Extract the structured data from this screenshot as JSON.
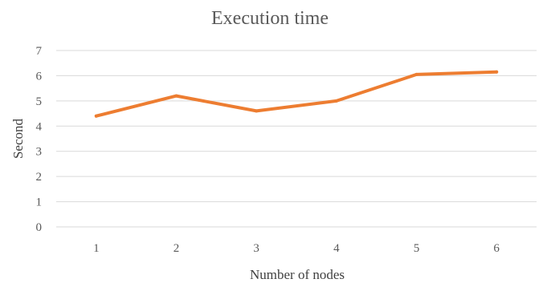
{
  "chart_data": {
    "type": "line",
    "title": "Execution time",
    "xlabel": "Number of nodes",
    "ylabel": "Second",
    "categories": [
      "1",
      "2",
      "3",
      "4",
      "5",
      "6"
    ],
    "series": [
      {
        "values": [
          4.4,
          5.2,
          4.6,
          5.0,
          6.05,
          6.15
        ],
        "color": "#ED7D31"
      }
    ],
    "ylim": [
      0,
      7
    ],
    "yticks": [
      "0",
      "1",
      "2",
      "3",
      "4",
      "5",
      "6",
      "7"
    ],
    "grid": true,
    "legend": "none"
  }
}
